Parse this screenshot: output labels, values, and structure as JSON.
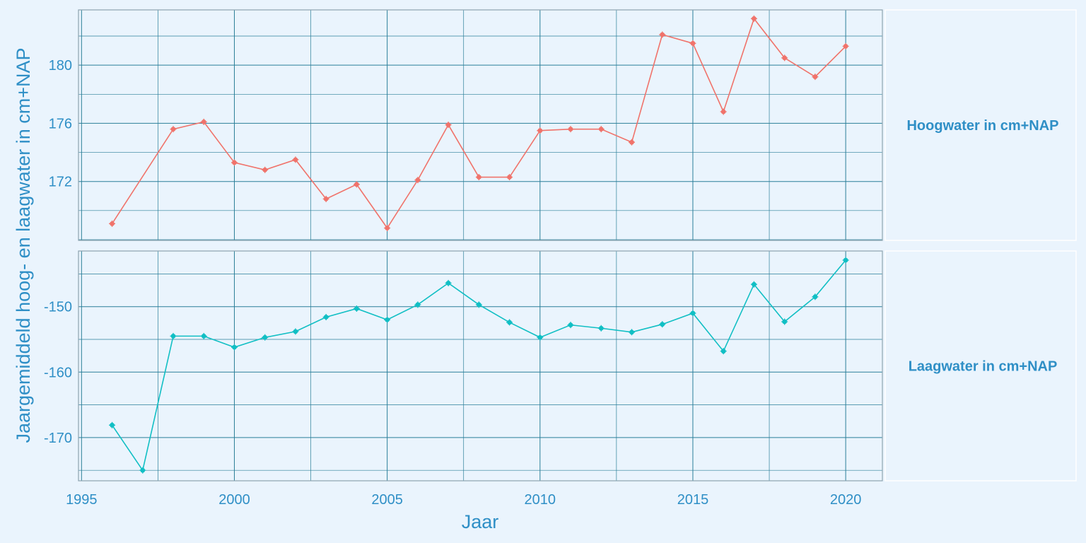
{
  "chart_data": {
    "type": "line",
    "xlabel": "Jaar",
    "ylabel": "Jaargemiddeld hoog- en laagwater in cm+NAP",
    "x_ticks": [
      1995,
      2000,
      2005,
      2010,
      2015,
      2020
    ],
    "xlim": [
      1994.9,
      2021.2
    ],
    "x": [
      1996,
      1997,
      1998,
      1999,
      2000,
      2001,
      2002,
      2003,
      2004,
      2005,
      2006,
      2007,
      2008,
      2009,
      2010,
      2011,
      2012,
      2013,
      2014,
      2015,
      2016,
      2017,
      2018,
      2019,
      2020
    ],
    "grid": true,
    "panels": [
      {
        "label": "Hoogwater in cm+NAP",
        "color": "#f0736b",
        "ylim": [
          167.95,
          183.8
        ],
        "y_ticks": [
          172,
          176,
          180
        ],
        "x": [
          1996,
          1998,
          1999,
          2000,
          2001,
          2002,
          2003,
          2004,
          2005,
          2006,
          2007,
          2008,
          2009,
          2010,
          2011,
          2012,
          2013,
          2014,
          2015,
          2016,
          2017,
          2018,
          2019,
          2020
        ],
        "values": [
          169.1,
          175.6,
          176.1,
          173.3,
          172.8,
          173.5,
          170.8,
          171.8,
          168.8,
          172.1,
          175.9,
          172.3,
          172.3,
          175.5,
          175.6,
          175.6,
          174.7,
          182.1,
          181.5,
          176.8,
          183.2,
          180.5,
          179.2,
          181.3
        ]
      },
      {
        "label": "Laagwater in cm+NAP",
        "color": "#11bfc4",
        "ylim": [
          -176.6,
          -141.5
        ],
        "y_ticks": [
          -170,
          -160,
          -150
        ],
        "x": [
          1996,
          1997,
          1998,
          1999,
          2000,
          2001,
          2002,
          2003,
          2004,
          2005,
          2006,
          2007,
          2008,
          2009,
          2010,
          2011,
          2012,
          2013,
          2014,
          2015,
          2016,
          2017,
          2018,
          2019,
          2020
        ],
        "values": [
          -168.1,
          -175.0,
          -154.5,
          -154.5,
          -156.2,
          -154.7,
          -153.8,
          -151.6,
          -150.3,
          -152.0,
          -149.7,
          -146.4,
          -149.7,
          -152.4,
          -154.7,
          -152.8,
          -153.3,
          -153.9,
          -152.7,
          -151.0,
          -156.8,
          -146.6,
          -152.3,
          -148.5,
          -142.9
        ]
      }
    ]
  }
}
